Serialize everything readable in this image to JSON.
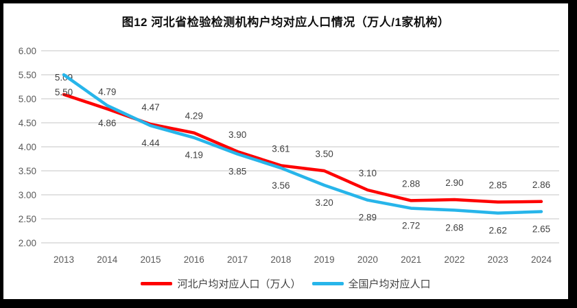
{
  "title": "图12  河北省检验检测机构户均对应人口情况（万人/1家机构）",
  "chart_data": {
    "type": "line",
    "x": [
      "2013",
      "2014",
      "2015",
      "2016",
      "2017",
      "2018",
      "2019",
      "2020",
      "2021",
      "2022",
      "2023",
      "2024"
    ],
    "series": [
      {
        "name": "河北户均对应人口（万人）",
        "slug": "hebei",
        "color": "#fe0000",
        "label_position": "above",
        "values": [
          5.09,
          4.79,
          4.47,
          4.29,
          3.9,
          3.61,
          3.5,
          3.1,
          2.88,
          2.9,
          2.85,
          2.86
        ]
      },
      {
        "name": "全国户均对应人口",
        "slug": "national",
        "color": "#27b5ea",
        "label_position": "below",
        "values": [
          5.5,
          4.86,
          4.44,
          4.19,
          3.85,
          3.56,
          3.2,
          2.89,
          2.72,
          2.68,
          2.62,
          2.65
        ]
      }
    ],
    "ylim": [
      2.0,
      6.0
    ],
    "ytick_step": 0.5,
    "ytick_labels": [
      "6.00",
      "5.50",
      "5.00",
      "4.50",
      "4.00",
      "3.50",
      "3.00",
      "2.50",
      "2.00"
    ],
    "grid": "horizontal-only",
    "legend_position": "bottom",
    "colors": {
      "gridline": "#e2e2e2",
      "axis_text": "#595959",
      "point_label_text": "#404040",
      "frame_border": "#000000"
    }
  }
}
